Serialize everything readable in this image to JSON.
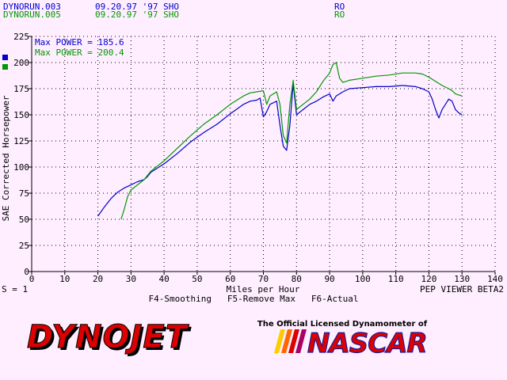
{
  "header": {
    "runs": [
      {
        "name": "DYNORUN.003",
        "info": "09.20.97 '97 SHO",
        "code": "RO",
        "color": "#0000cc"
      },
      {
        "name": "DYNORUN.005",
        "info": "09.20.97 '97 SHO",
        "code": "RO",
        "color": "#009900"
      }
    ]
  },
  "legend": {
    "max_power": [
      {
        "text": "Max POWER = 185.6",
        "color": "#0000cc"
      },
      {
        "text": "Max POWER = 200.4",
        "color": "#009900"
      }
    ]
  },
  "footer": {
    "smoothing": "S = 1",
    "viewer": "PEP VIEWER BETA2",
    "function_keys": "F4-Smoothing   F5-Remove Max   F6-Actual"
  },
  "branding": {
    "dynojet": "DYNOJET",
    "tagline": "The Official Licensed Dynamometer of",
    "nascar": "NASCAR"
  },
  "colors": {
    "background": "#ffeeff",
    "series_blue": "#0000cc",
    "series_green": "#009900",
    "logo_red": "#dd0000"
  },
  "chart_data": {
    "type": "line",
    "xlabel": "Miles per Hour",
    "ylabel": "SAE Corrected Horsepower",
    "xlim": [
      0,
      140
    ],
    "ylim": [
      0,
      225
    ],
    "xticks": [
      0,
      10,
      20,
      30,
      40,
      50,
      60,
      70,
      80,
      90,
      100,
      110,
      120,
      130,
      140
    ],
    "yticks": [
      0,
      25,
      50,
      75,
      100,
      125,
      150,
      175,
      200,
      225
    ],
    "grid": true,
    "series": [
      {
        "name": "DYNORUN.003",
        "color": "#0000cc",
        "x": [
          20,
          22,
          24,
          26,
          28,
          30,
          32,
          34,
          35,
          36,
          38,
          40,
          44,
          48,
          52,
          56,
          60,
          64,
          66,
          68,
          69,
          70,
          71,
          72,
          74,
          75,
          76,
          77,
          78,
          79,
          80,
          82,
          84,
          86,
          88,
          90,
          91,
          92,
          94,
          96,
          100,
          104,
          108,
          112,
          116,
          118,
          120,
          121,
          122,
          123,
          124,
          125,
          126,
          127,
          128,
          129,
          130
        ],
        "y": [
          53,
          62,
          70,
          76,
          80,
          83,
          86,
          88,
          91,
          95,
          99,
          103,
          113,
          124,
          133,
          141,
          151,
          160,
          163,
          164,
          166,
          148,
          153,
          160,
          163,
          140,
          120,
          116,
          140,
          180,
          150,
          155,
          160,
          163,
          167,
          170,
          163,
          168,
          172,
          175,
          176,
          177,
          177,
          178,
          177,
          175,
          172,
          165,
          155,
          147,
          155,
          160,
          165,
          163,
          155,
          152,
          150
        ]
      },
      {
        "name": "DYNORUN.005",
        "color": "#009900",
        "x": [
          27,
          28,
          29,
          30,
          32,
          34,
          36,
          38,
          40,
          44,
          48,
          52,
          56,
          60,
          64,
          66,
          68,
          70,
          71,
          72,
          74,
          75,
          76,
          77,
          78,
          79,
          80,
          82,
          84,
          86,
          88,
          90,
          91,
          92,
          93,
          94,
          96,
          100,
          104,
          108,
          112,
          116,
          118,
          120,
          122,
          124,
          126,
          127,
          128,
          129,
          130
        ],
        "y": [
          50,
          60,
          72,
          78,
          83,
          88,
          96,
          101,
          106,
          118,
          130,
          141,
          150,
          160,
          168,
          171,
          172,
          173,
          160,
          168,
          172,
          160,
          130,
          123,
          160,
          183,
          155,
          160,
          165,
          172,
          182,
          190,
          198,
          200,
          185,
          181,
          183,
          185,
          187,
          188,
          190,
          190,
          189,
          186,
          182,
          178,
          175,
          173,
          170,
          169,
          168
        ]
      }
    ]
  }
}
